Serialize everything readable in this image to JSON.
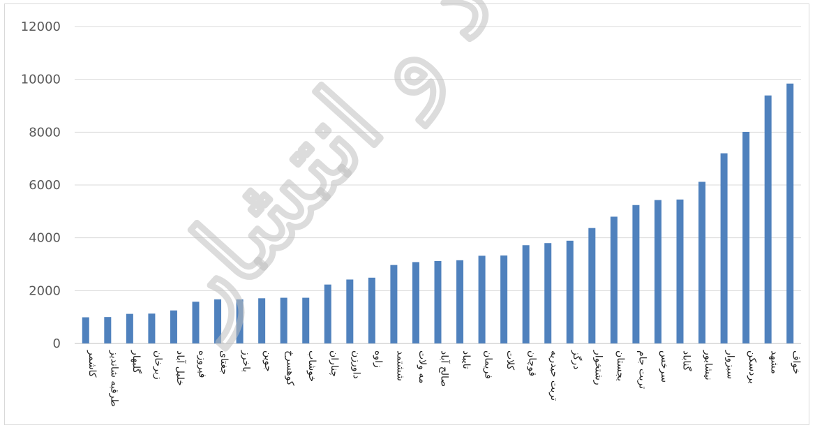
{
  "colors": {
    "bar": "#4f81bd",
    "grid": "#d9d9d9",
    "watermark": "#bfbfbf"
  },
  "watermark": {
    "text": "نهاد و انتشار"
  },
  "chart_data": {
    "type": "bar",
    "title": "",
    "xlabel": "",
    "ylabel": "",
    "ylim": [
      0,
      12000
    ],
    "yticks": [
      0,
      2000,
      4000,
      6000,
      8000,
      10000,
      12000
    ],
    "grid": true,
    "legend": "none",
    "categories": [
      "کاشمر",
      "طرقبه شاندیز",
      "گلبهار",
      "زبرخان",
      "خلیل آباد",
      "فیروزه",
      "جغتای",
      "باخرز",
      "جوین",
      "کوهسرخ",
      "خوشاب",
      "چناران",
      "داورزن",
      "زاوه",
      "ششتمد",
      "مه ولات",
      "صالح آباد",
      "تایباد",
      "فریمان",
      "کلات",
      "قوچان",
      "تربت حیدریه",
      "درگز",
      "رشتخوار",
      "بجستان",
      "تربت جام",
      "سرخس",
      "گناباد",
      "نیشابور",
      "سبزوار",
      "بردسکن",
      "مشهد",
      "خواف"
    ],
    "values": [
      990,
      1000,
      1120,
      1130,
      1250,
      1580,
      1670,
      1670,
      1710,
      1730,
      1730,
      2230,
      2420,
      2490,
      2970,
      3080,
      3120,
      3150,
      3320,
      3330,
      3720,
      3800,
      3890,
      4370,
      4800,
      5240,
      5430,
      5450,
      6120,
      7200,
      8010,
      9390,
      9840
    ]
  }
}
